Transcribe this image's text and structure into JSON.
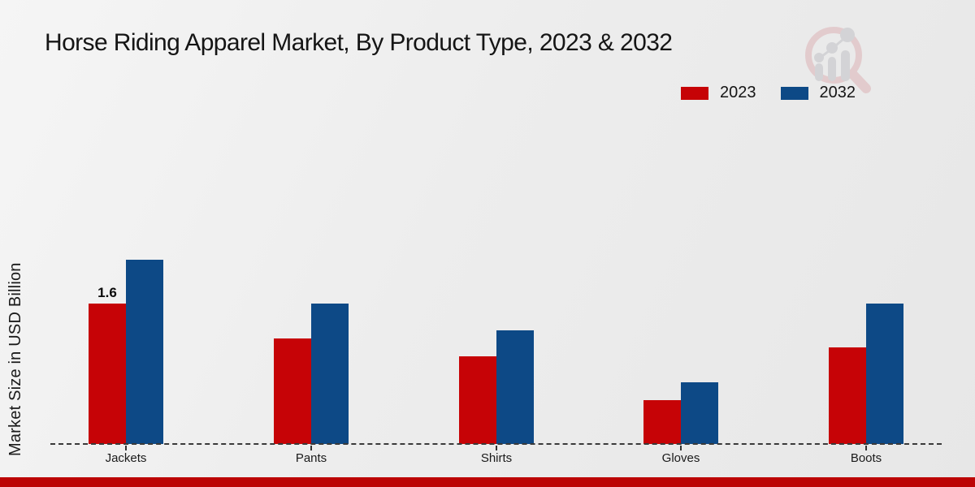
{
  "title": "Horse Riding Apparel Market, By Product Type, 2023 & 2032",
  "ylabel": "Market Size in USD Billion",
  "legend": [
    {
      "label": "2023",
      "color": "#c60306"
    },
    {
      "label": "2032",
      "color": "#0d4986"
    }
  ],
  "footer_bar": {
    "color": "#bc0404"
  },
  "logo": {
    "name": "market-research-magnifier-watermark"
  },
  "chart_data": {
    "type": "bar",
    "title": "Horse Riding Apparel Market, By Product Type, 2023 & 2032",
    "xlabel": "",
    "ylabel": "Market Size in USD Billion",
    "categories": [
      "Jackets",
      "Pants",
      "Shirts",
      "Gloves",
      "Boots"
    ],
    "series": [
      {
        "name": "2023",
        "color": "#c60306",
        "values": [
          1.6,
          1.2,
          1.0,
          0.5,
          1.1
        ]
      },
      {
        "name": "2032",
        "color": "#0d4986",
        "values": [
          2.1,
          1.6,
          1.3,
          0.7,
          1.6
        ]
      }
    ],
    "ylim": [
      0,
      2.5
    ],
    "grid": false,
    "legend_position": "top-right",
    "baseline_style": "dashed",
    "annotations": [
      {
        "series": "2023",
        "category": "Jackets",
        "text": "1.6"
      }
    ]
  }
}
